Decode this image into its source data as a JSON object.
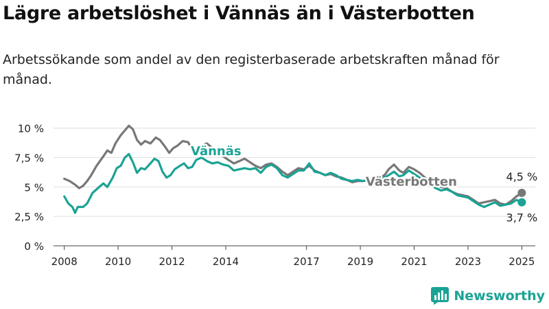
{
  "header": {
    "title": "Lägre arbetslöshet i Vännäs än i Västerbotten",
    "subtitle": "Arbetssökande som andel av den registerbaserade arbetskraften månad för månad."
  },
  "brand": {
    "name": "Newsworthy",
    "icon": "bar-chart-logo-icon"
  },
  "colors": {
    "vannas": "#1aa394",
    "vasterbotten": "#777777"
  },
  "chart_data": {
    "type": "line",
    "title": "Lägre arbetslöshet i Vännäs än i Västerbotten",
    "ylim": [
      0,
      10.5
    ],
    "y_ticks": [
      {
        "value": 0,
        "label": "0 %"
      },
      {
        "value": 2.5,
        "label": "2,5 %"
      },
      {
        "value": 5,
        "label": "5 %"
      },
      {
        "value": 7.5,
        "label": "7,5 %"
      },
      {
        "value": 10,
        "label": "10 %"
      }
    ],
    "xlim": [
      2007.6,
      2025.5
    ],
    "x_ticks": [
      "2008",
      "2010",
      "2012",
      "2014",
      "2017",
      "2019",
      "2021",
      "2023",
      "2025"
    ],
    "grid": "horizontal",
    "series": [
      {
        "name": "Västerbotten",
        "label_year": 2019.2,
        "label_value": 5.1,
        "end_label": "4,5 %",
        "points": [
          [
            2008.0,
            5.7
          ],
          [
            2008.2,
            5.5
          ],
          [
            2008.4,
            5.2
          ],
          [
            2008.55,
            4.9
          ],
          [
            2008.7,
            5.1
          ],
          [
            2008.85,
            5.5
          ],
          [
            2009.0,
            6.0
          ],
          [
            2009.2,
            6.8
          ],
          [
            2009.45,
            7.6
          ],
          [
            2009.6,
            8.1
          ],
          [
            2009.75,
            7.9
          ],
          [
            2009.9,
            8.7
          ],
          [
            2010.1,
            9.4
          ],
          [
            2010.25,
            9.8
          ],
          [
            2010.4,
            10.2
          ],
          [
            2010.55,
            9.9
          ],
          [
            2010.7,
            9.0
          ],
          [
            2010.85,
            8.6
          ],
          [
            2011.0,
            8.9
          ],
          [
            2011.2,
            8.7
          ],
          [
            2011.4,
            9.2
          ],
          [
            2011.55,
            9.0
          ],
          [
            2011.75,
            8.4
          ],
          [
            2011.9,
            7.9
          ],
          [
            2012.05,
            8.3
          ],
          [
            2012.2,
            8.5
          ],
          [
            2012.4,
            8.9
          ],
          [
            2012.6,
            8.8
          ],
          [
            2012.75,
            8.2
          ],
          [
            2012.9,
            8.2
          ],
          [
            2013.1,
            8.5
          ],
          [
            2013.3,
            8.7
          ],
          [
            2013.5,
            8.3
          ],
          [
            2013.7,
            7.9
          ],
          [
            2013.9,
            7.6
          ],
          [
            2014.1,
            7.3
          ],
          [
            2014.3,
            7.0
          ],
          [
            2014.5,
            7.2
          ],
          [
            2014.7,
            7.4
          ],
          [
            2014.9,
            7.1
          ],
          [
            2015.1,
            6.8
          ],
          [
            2015.3,
            6.6
          ],
          [
            2015.5,
            6.9
          ],
          [
            2015.7,
            7.0
          ],
          [
            2015.9,
            6.7
          ],
          [
            2016.1,
            6.3
          ],
          [
            2016.3,
            6.0
          ],
          [
            2016.5,
            6.3
          ],
          [
            2016.7,
            6.6
          ],
          [
            2016.9,
            6.5
          ],
          [
            2017.1,
            6.8
          ],
          [
            2017.3,
            6.4
          ],
          [
            2017.5,
            6.2
          ],
          [
            2017.7,
            6.0
          ],
          [
            2017.9,
            6.1
          ],
          [
            2018.1,
            5.9
          ],
          [
            2018.3,
            5.8
          ],
          [
            2018.5,
            5.6
          ],
          [
            2018.7,
            5.4
          ],
          [
            2018.9,
            5.5
          ],
          [
            2019.1,
            5.5
          ],
          [
            2019.3,
            5.6
          ],
          [
            2019.5,
            5.7
          ],
          [
            2019.7,
            5.8
          ],
          [
            2019.9,
            6.0
          ],
          [
            2020.05,
            6.5
          ],
          [
            2020.25,
            6.9
          ],
          [
            2020.45,
            6.4
          ],
          [
            2020.6,
            6.2
          ],
          [
            2020.8,
            6.7
          ],
          [
            2021.0,
            6.5
          ],
          [
            2021.2,
            6.2
          ],
          [
            2021.4,
            5.8
          ],
          [
            2021.6,
            5.5
          ],
          [
            2021.8,
            5.1
          ],
          [
            2022.0,
            5.0
          ],
          [
            2022.2,
            4.9
          ],
          [
            2022.4,
            4.6
          ],
          [
            2022.6,
            4.4
          ],
          [
            2022.8,
            4.3
          ],
          [
            2023.0,
            4.2
          ],
          [
            2023.2,
            3.9
          ],
          [
            2023.4,
            3.6
          ],
          [
            2023.6,
            3.7
          ],
          [
            2023.8,
            3.8
          ],
          [
            2024.0,
            3.9
          ],
          [
            2024.2,
            3.6
          ],
          [
            2024.4,
            3.5
          ],
          [
            2024.6,
            3.8
          ],
          [
            2024.8,
            4.2
          ],
          [
            2025.0,
            4.5
          ]
        ]
      },
      {
        "name": "Vännäs",
        "label_year": 2012.7,
        "label_value": 7.7,
        "end_label": "3,7 %",
        "points": [
          [
            2008.0,
            4.2
          ],
          [
            2008.15,
            3.6
          ],
          [
            2008.3,
            3.3
          ],
          [
            2008.4,
            2.8
          ],
          [
            2008.5,
            3.3
          ],
          [
            2008.7,
            3.3
          ],
          [
            2008.85,
            3.6
          ],
          [
            2009.05,
            4.5
          ],
          [
            2009.25,
            4.9
          ],
          [
            2009.45,
            5.3
          ],
          [
            2009.6,
            5.0
          ],
          [
            2009.8,
            5.8
          ],
          [
            2009.95,
            6.6
          ],
          [
            2010.1,
            6.8
          ],
          [
            2010.25,
            7.5
          ],
          [
            2010.4,
            7.8
          ],
          [
            2010.55,
            7.1
          ],
          [
            2010.7,
            6.2
          ],
          [
            2010.85,
            6.6
          ],
          [
            2011.0,
            6.5
          ],
          [
            2011.2,
            7.0
          ],
          [
            2011.35,
            7.4
          ],
          [
            2011.5,
            7.2
          ],
          [
            2011.65,
            6.3
          ],
          [
            2011.8,
            5.8
          ],
          [
            2011.95,
            6.0
          ],
          [
            2012.1,
            6.5
          ],
          [
            2012.3,
            6.8
          ],
          [
            2012.45,
            7.0
          ],
          [
            2012.6,
            6.6
          ],
          [
            2012.75,
            6.7
          ],
          [
            2012.9,
            7.3
          ],
          [
            2013.1,
            7.5
          ],
          [
            2013.3,
            7.2
          ],
          [
            2013.5,
            7.0
          ],
          [
            2013.7,
            7.1
          ],
          [
            2013.9,
            6.9
          ],
          [
            2014.1,
            6.8
          ],
          [
            2014.3,
            6.4
          ],
          [
            2014.5,
            6.5
          ],
          [
            2014.7,
            6.6
          ],
          [
            2014.9,
            6.5
          ],
          [
            2015.1,
            6.6
          ],
          [
            2015.3,
            6.2
          ],
          [
            2015.5,
            6.7
          ],
          [
            2015.7,
            6.9
          ],
          [
            2015.9,
            6.6
          ],
          [
            2016.1,
            6.0
          ],
          [
            2016.3,
            5.8
          ],
          [
            2016.5,
            6.1
          ],
          [
            2016.7,
            6.4
          ],
          [
            2016.9,
            6.4
          ],
          [
            2017.1,
            7.0
          ],
          [
            2017.3,
            6.3
          ],
          [
            2017.5,
            6.2
          ],
          [
            2017.7,
            6.0
          ],
          [
            2017.9,
            6.2
          ],
          [
            2018.1,
            6.0
          ],
          [
            2018.3,
            5.7
          ],
          [
            2018.5,
            5.6
          ],
          [
            2018.7,
            5.5
          ],
          [
            2018.9,
            5.6
          ],
          [
            2019.1,
            5.5
          ],
          [
            2019.3,
            5.6
          ],
          [
            2019.5,
            5.8
          ],
          [
            2019.7,
            5.7
          ],
          [
            2019.9,
            5.8
          ],
          [
            2020.05,
            6.0
          ],
          [
            2020.25,
            6.3
          ],
          [
            2020.45,
            5.9
          ],
          [
            2020.6,
            6.0
          ],
          [
            2020.8,
            6.4
          ],
          [
            2021.0,
            6.1
          ],
          [
            2021.2,
            5.8
          ],
          [
            2021.4,
            5.4
          ],
          [
            2021.6,
            5.2
          ],
          [
            2021.8,
            4.9
          ],
          [
            2022.0,
            4.7
          ],
          [
            2022.2,
            4.8
          ],
          [
            2022.4,
            4.6
          ],
          [
            2022.6,
            4.3
          ],
          [
            2022.8,
            4.2
          ],
          [
            2023.0,
            4.1
          ],
          [
            2023.2,
            3.8
          ],
          [
            2023.4,
            3.5
          ],
          [
            2023.6,
            3.3
          ],
          [
            2023.8,
            3.5
          ],
          [
            2024.0,
            3.7
          ],
          [
            2024.2,
            3.4
          ],
          [
            2024.4,
            3.5
          ],
          [
            2024.6,
            3.6
          ],
          [
            2024.8,
            3.9
          ],
          [
            2025.0,
            3.7
          ]
        ]
      }
    ]
  }
}
